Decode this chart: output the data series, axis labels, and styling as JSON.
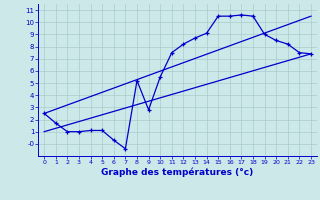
{
  "title": "Graphe des températures (°c)",
  "bg_color": "#cce8e8",
  "grid_color": "#aacccc",
  "line_color": "#0000cc",
  "xlim": [
    -0.5,
    23.5
  ],
  "ylim": [
    -1.0,
    11.5
  ],
  "xticks": [
    0,
    1,
    2,
    3,
    4,
    5,
    6,
    7,
    8,
    9,
    10,
    11,
    12,
    13,
    14,
    15,
    16,
    17,
    18,
    19,
    20,
    21,
    22,
    23
  ],
  "yticks": [
    0,
    1,
    2,
    3,
    4,
    5,
    6,
    7,
    8,
    9,
    10,
    11
  ],
  "ytick_labels": [
    "-0",
    "1",
    "2",
    "3",
    "4",
    "5",
    "6",
    "7",
    "8",
    "9",
    "10",
    "11"
  ],
  "curve1_x": [
    0,
    1,
    2,
    3,
    4,
    5,
    6,
    7,
    8,
    9,
    10,
    11,
    12,
    13,
    14,
    15,
    16,
    17,
    18,
    19,
    20,
    21,
    22,
    23
  ],
  "curve1_y": [
    2.5,
    1.7,
    1.0,
    1.0,
    1.1,
    1.1,
    0.3,
    -0.4,
    5.2,
    2.8,
    5.5,
    7.5,
    8.2,
    8.7,
    9.1,
    10.5,
    10.5,
    10.6,
    10.5,
    9.0,
    8.5,
    8.2,
    7.5,
    7.4
  ],
  "curve2_x": [
    0,
    23
  ],
  "curve2_y": [
    1.0,
    7.4
  ],
  "curve3_x": [
    0,
    23
  ],
  "curve3_y": [
    2.5,
    10.5
  ]
}
